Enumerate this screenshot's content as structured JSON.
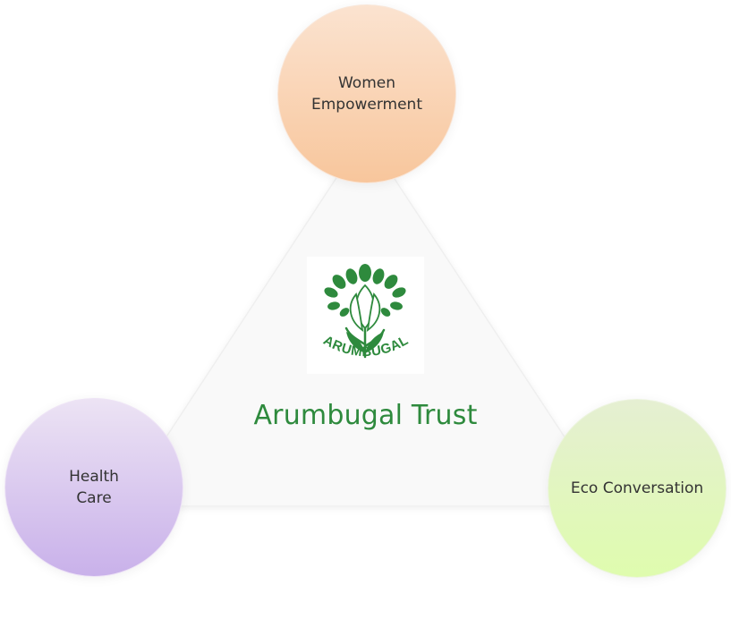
{
  "center": {
    "title": "Arumbugal Trust",
    "logo_text": "ARUMBUGAL"
  },
  "nodes": {
    "top": "Women\nEmpowerment",
    "left": "Health\nCare",
    "right": "Eco Conversation"
  },
  "colors": {
    "brand_green": "#2e8a3d",
    "women_gradient": [
      "#fbe3d0",
      "#f8c69c"
    ],
    "health_gradient": [
      "#ece3f4",
      "#c9b1ea"
    ],
    "eco_gradient": [
      "#e5efd2",
      "#dffcae"
    ],
    "triangle_fill": "#f8f8f8"
  },
  "icons": {
    "logo": "tree-lotus-logo-icon"
  }
}
